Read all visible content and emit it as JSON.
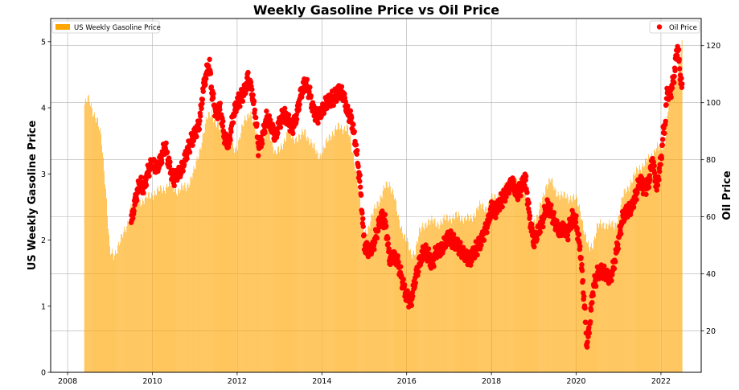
{
  "chart_data": {
    "type": "bar+scatter",
    "title": "Weekly Gasoline Price vs Oil Price",
    "xlabel": "",
    "ylabel_left": "US Weekly Gasoline Price",
    "ylabel_right": "Oil Price",
    "xlim": [
      2007.6,
      2022.95
    ],
    "ylim_left": [
      0,
      5.35
    ],
    "ylim_right": [
      5.5,
      129.5
    ],
    "x_ticks": [
      "2008",
      "2010",
      "2012",
      "2014",
      "2016",
      "2018",
      "2020",
      "2022"
    ],
    "y_left_ticks": [
      "0",
      "1",
      "2",
      "3",
      "4",
      "5"
    ],
    "y_right_ticks": [
      "20",
      "40",
      "60",
      "80",
      "100",
      "120"
    ],
    "grid": true,
    "legend_left": {
      "placement": "top-left",
      "label": "US Weekly Gasoline Price"
    },
    "legend_right": {
      "placement": "top-right",
      "label": "Oil Price"
    },
    "colors": {
      "gasoline": "#FFA500",
      "oil": "#FF0000"
    },
    "series": [
      {
        "name": "US Weekly Gasoline Price",
        "kind": "bar",
        "points": [
          [
            2008.4,
            4.05
          ],
          [
            2008.5,
            4.12
          ],
          [
            2008.6,
            3.95
          ],
          [
            2008.7,
            3.8
          ],
          [
            2008.8,
            3.5
          ],
          [
            2008.9,
            2.8
          ],
          [
            2009.0,
            1.8
          ],
          [
            2009.1,
            1.75
          ],
          [
            2009.2,
            1.95
          ],
          [
            2009.3,
            2.05
          ],
          [
            2009.4,
            2.2
          ],
          [
            2009.5,
            2.55
          ],
          [
            2009.6,
            2.6
          ],
          [
            2009.8,
            2.6
          ],
          [
            2010.0,
            2.7
          ],
          [
            2010.2,
            2.75
          ],
          [
            2010.4,
            2.85
          ],
          [
            2010.6,
            2.75
          ],
          [
            2010.8,
            2.8
          ],
          [
            2011.0,
            3.05
          ],
          [
            2011.2,
            3.6
          ],
          [
            2011.3,
            3.85
          ],
          [
            2011.4,
            3.95
          ],
          [
            2011.5,
            3.75
          ],
          [
            2011.6,
            3.65
          ],
          [
            2011.8,
            3.5
          ],
          [
            2011.9,
            3.4
          ],
          [
            2012.0,
            3.4
          ],
          [
            2012.2,
            3.85
          ],
          [
            2012.3,
            3.95
          ],
          [
            2012.5,
            3.5
          ],
          [
            2012.6,
            3.4
          ],
          [
            2012.7,
            3.8
          ],
          [
            2012.8,
            3.55
          ],
          [
            2012.9,
            3.3
          ],
          [
            2013.0,
            3.35
          ],
          [
            2013.2,
            3.65
          ],
          [
            2013.3,
            3.55
          ],
          [
            2013.5,
            3.55
          ],
          [
            2013.6,
            3.65
          ],
          [
            2013.8,
            3.4
          ],
          [
            2013.9,
            3.3
          ],
          [
            2014.0,
            3.3
          ],
          [
            2014.2,
            3.6
          ],
          [
            2014.4,
            3.7
          ],
          [
            2014.6,
            3.7
          ],
          [
            2014.7,
            3.4
          ],
          [
            2014.8,
            3.1
          ],
          [
            2014.9,
            2.6
          ],
          [
            2015.0,
            2.1
          ],
          [
            2015.1,
            2.2
          ],
          [
            2015.3,
            2.55
          ],
          [
            2015.5,
            2.8
          ],
          [
            2015.6,
            2.85
          ],
          [
            2015.7,
            2.7
          ],
          [
            2015.8,
            2.3
          ],
          [
            2016.0,
            2.0
          ],
          [
            2016.1,
            1.75
          ],
          [
            2016.2,
            1.85
          ],
          [
            2016.3,
            2.1
          ],
          [
            2016.5,
            2.3
          ],
          [
            2016.7,
            2.25
          ],
          [
            2016.9,
            2.3
          ],
          [
            2017.0,
            2.35
          ],
          [
            2017.3,
            2.35
          ],
          [
            2017.5,
            2.3
          ],
          [
            2017.7,
            2.5
          ],
          [
            2017.9,
            2.5
          ],
          [
            2018.0,
            2.6
          ],
          [
            2018.2,
            2.7
          ],
          [
            2018.4,
            2.85
          ],
          [
            2018.6,
            2.85
          ],
          [
            2018.7,
            2.9
          ],
          [
            2018.8,
            2.7
          ],
          [
            2018.9,
            2.3
          ],
          [
            2019.0,
            2.3
          ],
          [
            2019.1,
            2.35
          ],
          [
            2019.3,
            2.85
          ],
          [
            2019.4,
            2.9
          ],
          [
            2019.5,
            2.75
          ],
          [
            2019.7,
            2.65
          ],
          [
            2019.9,
            2.65
          ],
          [
            2020.0,
            2.6
          ],
          [
            2020.1,
            2.45
          ],
          [
            2020.2,
            2.1
          ],
          [
            2020.3,
            1.85
          ],
          [
            2020.4,
            1.95
          ],
          [
            2020.5,
            2.2
          ],
          [
            2020.7,
            2.25
          ],
          [
            2020.9,
            2.2
          ],
          [
            2021.0,
            2.35
          ],
          [
            2021.1,
            2.65
          ],
          [
            2021.3,
            2.9
          ],
          [
            2021.5,
            3.1
          ],
          [
            2021.7,
            3.2
          ],
          [
            2021.9,
            3.4
          ],
          [
            2022.0,
            3.35
          ],
          [
            2022.1,
            3.55
          ],
          [
            2022.2,
            4.2
          ],
          [
            2022.3,
            4.3
          ],
          [
            2022.4,
            4.55
          ],
          [
            2022.5,
            4.95
          ]
        ]
      },
      {
        "name": "Oil Price",
        "kind": "scatter",
        "points": [
          [
            2009.5,
            58
          ],
          [
            2009.6,
            66
          ],
          [
            2009.7,
            72
          ],
          [
            2009.8,
            70
          ],
          [
            2009.9,
            76
          ],
          [
            2010.0,
            79
          ],
          [
            2010.1,
            77
          ],
          [
            2010.2,
            80
          ],
          [
            2010.3,
            85
          ],
          [
            2010.4,
            78
          ],
          [
            2010.5,
            73
          ],
          [
            2010.6,
            75
          ],
          [
            2010.7,
            77
          ],
          [
            2010.8,
            82
          ],
          [
            2010.9,
            86
          ],
          [
            2011.0,
            89
          ],
          [
            2011.1,
            92
          ],
          [
            2011.15,
            98
          ],
          [
            2011.2,
            105
          ],
          [
            2011.3,
            112
          ],
          [
            2011.35,
            113
          ],
          [
            2011.4,
            104
          ],
          [
            2011.5,
            96
          ],
          [
            2011.6,
            98
          ],
          [
            2011.7,
            88
          ],
          [
            2011.8,
            85
          ],
          [
            2011.9,
            95
          ],
          [
            2012.0,
            100
          ],
          [
            2012.1,
            102
          ],
          [
            2012.2,
            105
          ],
          [
            2012.25,
            109
          ],
          [
            2012.35,
            104
          ],
          [
            2012.45,
            93
          ],
          [
            2012.5,
            84
          ],
          [
            2012.6,
            88
          ],
          [
            2012.7,
            95
          ],
          [
            2012.8,
            92
          ],
          [
            2012.9,
            88
          ],
          [
            2013.0,
            93
          ],
          [
            2013.1,
            96
          ],
          [
            2013.2,
            94
          ],
          [
            2013.3,
            91
          ],
          [
            2013.4,
            95
          ],
          [
            2013.5,
            103
          ],
          [
            2013.6,
            107
          ],
          [
            2013.7,
            104
          ],
          [
            2013.8,
            97
          ],
          [
            2013.9,
            95
          ],
          [
            2014.0,
            97
          ],
          [
            2014.1,
            100
          ],
          [
            2014.2,
            101
          ],
          [
            2014.3,
            102
          ],
          [
            2014.4,
            104
          ],
          [
            2014.5,
            103
          ],
          [
            2014.6,
            97
          ],
          [
            2014.7,
            94
          ],
          [
            2014.8,
            85
          ],
          [
            2014.9,
            72
          ],
          [
            2015.0,
            50
          ],
          [
            2015.1,
            48
          ],
          [
            2015.2,
            49
          ],
          [
            2015.3,
            55
          ],
          [
            2015.4,
            60
          ],
          [
            2015.5,
            58
          ],
          [
            2015.6,
            45
          ],
          [
            2015.7,
            46
          ],
          [
            2015.8,
            44
          ],
          [
            2015.9,
            37
          ],
          [
            2016.0,
            32
          ],
          [
            2016.1,
            30
          ],
          [
            2016.2,
            38
          ],
          [
            2016.3,
            44
          ],
          [
            2016.4,
            48
          ],
          [
            2016.5,
            47
          ],
          [
            2016.6,
            43
          ],
          [
            2016.7,
            48
          ],
          [
            2016.8,
            48
          ],
          [
            2016.9,
            51
          ],
          [
            2017.0,
            53
          ],
          [
            2017.2,
            50
          ],
          [
            2017.4,
            46
          ],
          [
            2017.5,
            45
          ],
          [
            2017.6,
            48
          ],
          [
            2017.7,
            50
          ],
          [
            2017.8,
            53
          ],
          [
            2017.9,
            57
          ],
          [
            2018.0,
            63
          ],
          [
            2018.1,
            62
          ],
          [
            2018.2,
            65
          ],
          [
            2018.3,
            67
          ],
          [
            2018.4,
            70
          ],
          [
            2018.5,
            72
          ],
          [
            2018.6,
            68
          ],
          [
            2018.7,
            70
          ],
          [
            2018.8,
            74
          ],
          [
            2018.9,
            60
          ],
          [
            2019.0,
            51
          ],
          [
            2019.1,
            55
          ],
          [
            2019.2,
            58
          ],
          [
            2019.3,
            64
          ],
          [
            2019.4,
            62
          ],
          [
            2019.5,
            58
          ],
          [
            2019.6,
            55
          ],
          [
            2019.7,
            56
          ],
          [
            2019.8,
            54
          ],
          [
            2019.9,
            60
          ],
          [
            2020.0,
            58
          ],
          [
            2020.1,
            48
          ],
          [
            2020.2,
            28
          ],
          [
            2020.25,
            15
          ],
          [
            2020.3,
            20
          ],
          [
            2020.4,
            35
          ],
          [
            2020.5,
            40
          ],
          [
            2020.6,
            41
          ],
          [
            2020.7,
            40
          ],
          [
            2020.8,
            38
          ],
          [
            2020.9,
            44
          ],
          [
            2021.0,
            52
          ],
          [
            2021.1,
            60
          ],
          [
            2021.2,
            62
          ],
          [
            2021.3,
            63
          ],
          [
            2021.4,
            67
          ],
          [
            2021.5,
            73
          ],
          [
            2021.6,
            70
          ],
          [
            2021.7,
            71
          ],
          [
            2021.8,
            80
          ],
          [
            2021.9,
            70
          ],
          [
            2022.0,
            80
          ],
          [
            2022.05,
            89
          ],
          [
            2022.1,
            93
          ],
          [
            2022.15,
            105
          ],
          [
            2022.2,
            102
          ],
          [
            2022.3,
            108
          ],
          [
            2022.35,
            115
          ],
          [
            2022.4,
            120
          ],
          [
            2022.45,
            110
          ],
          [
            2022.5,
            105
          ]
        ]
      }
    ]
  }
}
